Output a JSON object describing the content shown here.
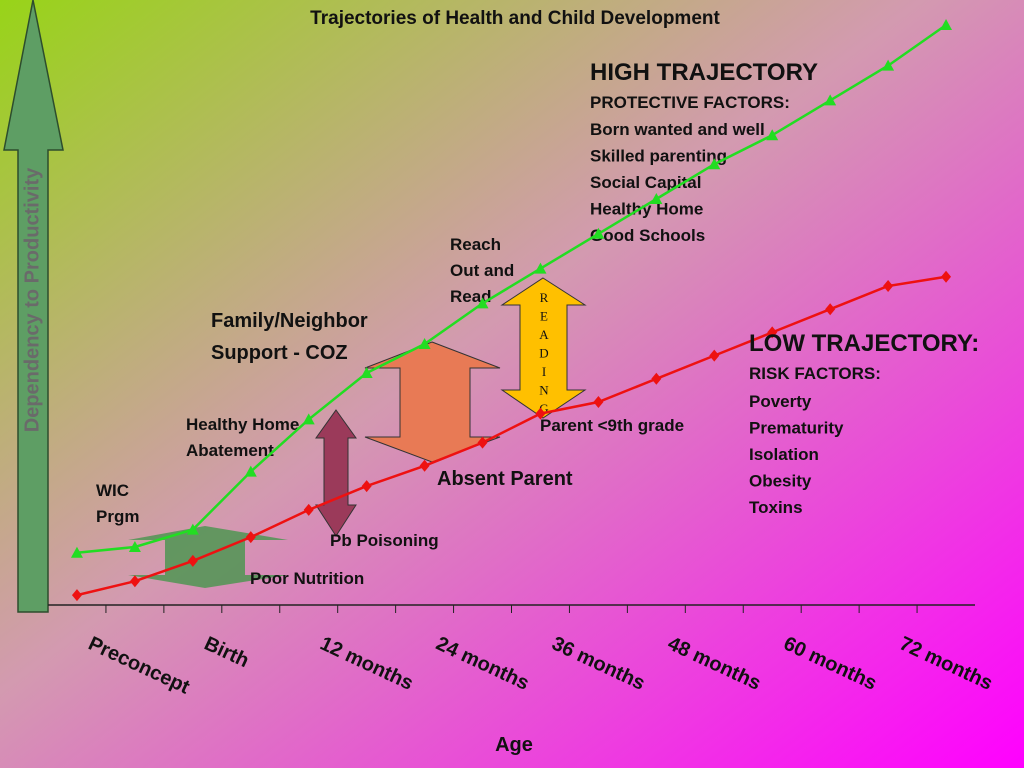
{
  "chart_data": {
    "type": "line",
    "title": "Trajectories of Health and Child Development",
    "x_label": "Age",
    "y_label": "Dependency to Productivity",
    "categories": [
      "Preconcept",
      null,
      "Birth",
      null,
      "12 months",
      null,
      "24 months",
      null,
      "36 months",
      null,
      "48 months",
      null,
      "60 months",
      null,
      "72 months",
      null
    ],
    "ylim": [
      0,
      100
    ],
    "series": [
      {
        "name": "HIGH TRAJECTORY",
        "color": "#22dd22",
        "marker": "triangle",
        "values": [
          9,
          10,
          13,
          23,
          32,
          40,
          45,
          52,
          58,
          64,
          70,
          76,
          81,
          87,
          93,
          100
        ]
      },
      {
        "name": "LOW TRAJECTORY:",
        "color": "#ee1111",
        "marker": "diamond",
        "values": [
          1.7,
          4.1,
          7.6,
          11.7,
          16.4,
          20.5,
          24,
          28,
          33,
          35,
          39,
          43,
          47,
          51,
          55,
          56.6
        ]
      }
    ],
    "high_factors": {
      "heading": "PROTECTIVE FACTORS:",
      "items": [
        "Born wanted and well",
        "Skilled parenting",
        "Social Capital",
        "Healthy Home",
        "Good Schools"
      ]
    },
    "low_factors": {
      "heading": "RISK FACTORS:",
      "items": [
        "Poverty",
        "Prematurity",
        "Isolation",
        "Obesity",
        "Toxins"
      ]
    },
    "annotations": {
      "reach": [
        "Reach",
        "Out and",
        "Read"
      ],
      "family": [
        "Family/Neighbor",
        "Support - COZ"
      ],
      "healthy_home": [
        "Healthy Home",
        "Abatement"
      ],
      "wic": [
        "WIC",
        "Prgm"
      ],
      "pb": "Pb Poisoning",
      "nutrition": "Poor Nutrition",
      "absent": "Absent Parent",
      "parent": "Parent <9th grade",
      "reading": "READING"
    }
  }
}
